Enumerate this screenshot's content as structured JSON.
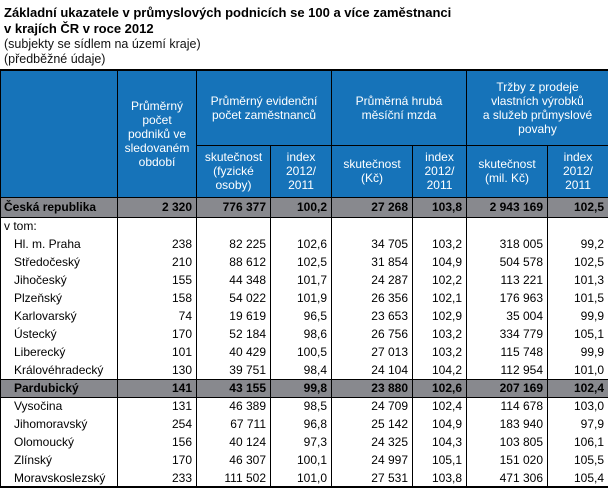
{
  "title": {
    "line1": "Základní ukazatele v průmyslových podnicích se 100 a více zaměstnanci",
    "line2": "v krajích ČR v roce 2012",
    "line3": "(subjekty se sídlem na území kraje)",
    "line4": "(předběžné údaje)"
  },
  "colors": {
    "header_bg": "#1673b9",
    "header_text": "#ffffff",
    "highlight_bg": "#88898e",
    "border": "#000000"
  },
  "table": {
    "header": {
      "region": "",
      "group1": "Průměrný\npočet\npodniků ve\nsledovaném\nobdobí",
      "group2": "Průměrný evidenční\npočet zaměstnanců",
      "group3": "Průměrná hrubá\nměsíční mzda",
      "group4": "Tržby z prodeje\nvlastních výrobků\na služeb průmyslové\npovahy",
      "sub": [
        "skutečnost\n(fyzické\nosoby)",
        "index\n2012/\n2011",
        "skutečnost\n(Kč)",
        "index\n2012/\n2011",
        "skutečnost\n(mil. Kč)",
        "index\n2012/\n2011"
      ]
    },
    "rows": [
      {
        "label": "Česká republika",
        "indent": false,
        "highlight": true,
        "values": [
          "2 320",
          "776 377",
          "100,2",
          "27 268",
          "103,8",
          "2 943 169",
          "102,5"
        ]
      },
      {
        "label": "v tom:",
        "indent": false,
        "highlight": false,
        "values": [
          "",
          "",
          "",
          "",
          "",
          "",
          ""
        ]
      },
      {
        "label": "Hl. m. Praha",
        "indent": true,
        "highlight": false,
        "values": [
          "238",
          "82 225",
          "102,6",
          "34 705",
          "103,2",
          "318 005",
          "99,2"
        ]
      },
      {
        "label": "Středočeský",
        "indent": true,
        "highlight": false,
        "values": [
          "210",
          "88 612",
          "102,5",
          "31 854",
          "104,9",
          "504 578",
          "102,5"
        ]
      },
      {
        "label": "Jihočeský",
        "indent": true,
        "highlight": false,
        "values": [
          "155",
          "44 348",
          "101,7",
          "24 287",
          "102,2",
          "113 221",
          "101,3"
        ]
      },
      {
        "label": "Plzeňský",
        "indent": true,
        "highlight": false,
        "values": [
          "158",
          "54 022",
          "101,9",
          "26 356",
          "102,1",
          "176 963",
          "101,5"
        ]
      },
      {
        "label": "Karlovarský",
        "indent": true,
        "highlight": false,
        "values": [
          "74",
          "19 619",
          "96,5",
          "23 653",
          "102,9",
          "35 004",
          "99,9"
        ]
      },
      {
        "label": "Ústecký",
        "indent": true,
        "highlight": false,
        "values": [
          "170",
          "52 184",
          "98,6",
          "26 756",
          "103,2",
          "334 779",
          "105,1"
        ]
      },
      {
        "label": "Liberecký",
        "indent": true,
        "highlight": false,
        "values": [
          "101",
          "40 429",
          "100,5",
          "27 013",
          "103,2",
          "115 748",
          "99,9"
        ]
      },
      {
        "label": "Královéhradecký",
        "indent": true,
        "highlight": false,
        "values": [
          "130",
          "39 751",
          "98,4",
          "24 104",
          "104,2",
          "112 954",
          "101,0"
        ]
      },
      {
        "label": "Pardubický",
        "indent": true,
        "highlight": true,
        "values": [
          "141",
          "43 155",
          "99,8",
          "23 880",
          "102,6",
          "207 169",
          "102,4"
        ]
      },
      {
        "label": "Vysočina",
        "indent": true,
        "highlight": false,
        "values": [
          "131",
          "46 389",
          "98,5",
          "24 709",
          "102,4",
          "114 678",
          "103,0"
        ]
      },
      {
        "label": "Jihomoravský",
        "indent": true,
        "highlight": false,
        "values": [
          "254",
          "67 711",
          "96,8",
          "25 142",
          "104,9",
          "183 940",
          "97,9"
        ]
      },
      {
        "label": "Olomoucký",
        "indent": true,
        "highlight": false,
        "values": [
          "156",
          "40 124",
          "97,3",
          "24 325",
          "104,3",
          "103 805",
          "106,1"
        ]
      },
      {
        "label": "Zlínský",
        "indent": true,
        "highlight": false,
        "values": [
          "170",
          "46 307",
          "100,1",
          "24 997",
          "105,1",
          "151 020",
          "105,5"
        ]
      },
      {
        "label": "Moravskoslezský",
        "indent": true,
        "highlight": false,
        "values": [
          "233",
          "111 502",
          "101,0",
          "27 531",
          "103,8",
          "471 306",
          "105,4"
        ]
      }
    ]
  }
}
